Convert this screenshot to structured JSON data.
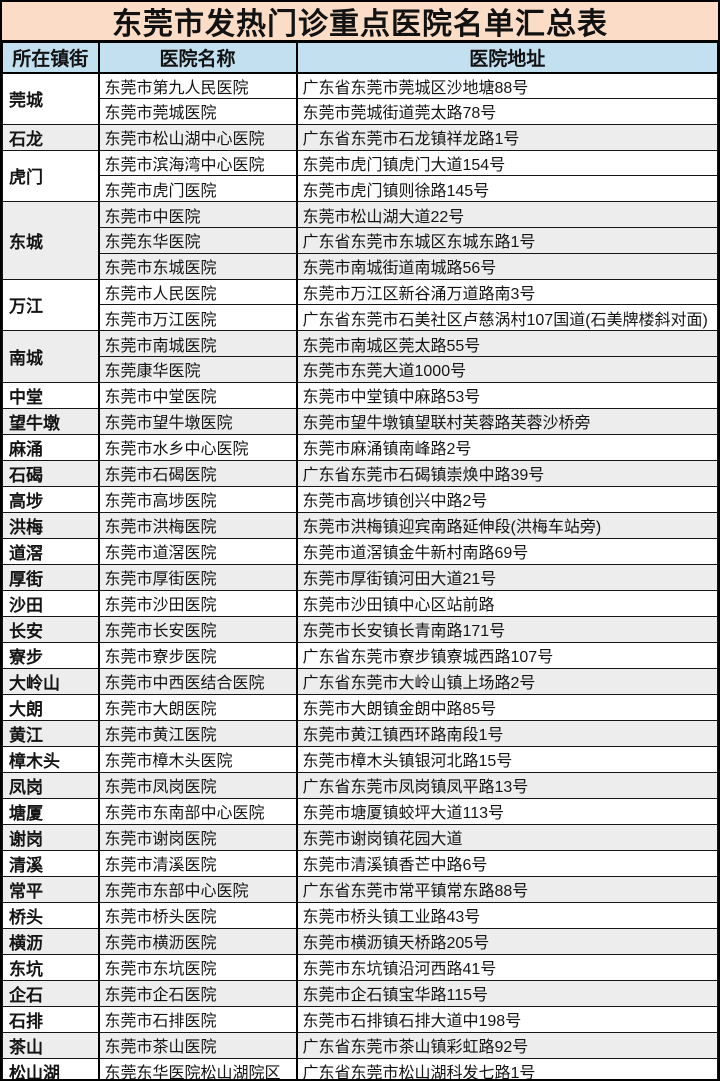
{
  "page": {
    "title": "东莞市发热门诊重点医院名单汇总表"
  },
  "colors": {
    "title_bg": "#fbdcc7",
    "header_bg": "#c3e0f1",
    "stripe_bg": "#ededed",
    "row_bg": "#ffffff",
    "border": "#000000"
  },
  "table": {
    "columns": [
      "所在镇街",
      "医院名称",
      "医院地址"
    ],
    "groups": [
      {
        "town": "莞城",
        "rows": [
          {
            "name": "东莞市第九人民医院",
            "address": "广东省东莞市莞城区沙地塘88号"
          },
          {
            "name": "东莞市莞城医院",
            "address": "东莞市莞城街道莞太路78号"
          }
        ]
      },
      {
        "town": "石龙",
        "rows": [
          {
            "name": "东莞市松山湖中心医院",
            "address": "广东省东莞市石龙镇祥龙路1号"
          }
        ]
      },
      {
        "town": "虎门",
        "rows": [
          {
            "name": "东莞市滨海湾中心医院",
            "address": "东莞市虎门镇虎门大道154号"
          },
          {
            "name": "东莞市虎门医院",
            "address": "东莞市虎门镇则徐路145号"
          }
        ]
      },
      {
        "town": "东城",
        "rows": [
          {
            "name": "东莞市中医院",
            "address": "东莞市松山湖大道22号"
          },
          {
            "name": "东莞东华医院",
            "address": "广东省东莞市东城区东城东路1号"
          },
          {
            "name": "东莞市东城医院",
            "address": "东莞市南城街道南城路56号"
          }
        ]
      },
      {
        "town": "万江",
        "rows": [
          {
            "name": "东莞市人民医院",
            "address": "东莞市万江区新谷涌万道路南3号"
          },
          {
            "name": "东莞市万江医院",
            "address": "广东省东莞市石美社区卢慈涡村107国道(石美牌楼斜对面)"
          }
        ]
      },
      {
        "town": "南城",
        "rows": [
          {
            "name": "东莞市南城医院",
            "address": "东莞市南城区莞太路55号"
          },
          {
            "name": "东莞康华医院",
            "address": "东莞市东莞大道1000号"
          }
        ]
      },
      {
        "town": "中堂",
        "rows": [
          {
            "name": "东莞市中堂医院",
            "address": "东莞市中堂镇中麻路53号"
          }
        ]
      },
      {
        "town": "望牛墩",
        "rows": [
          {
            "name": "东莞市望牛墩医院",
            "address": "东莞市望牛墩镇望联村芙蓉路芙蓉沙桥旁"
          }
        ]
      },
      {
        "town": "麻涌",
        "rows": [
          {
            "name": "东莞市水乡中心医院",
            "address": "东莞市麻涌镇南峰路2号"
          }
        ]
      },
      {
        "town": "石碣",
        "rows": [
          {
            "name": "东莞市石碣医院",
            "address": "广东省东莞市石碣镇崇焕中路39号"
          }
        ]
      },
      {
        "town": "高埗",
        "rows": [
          {
            "name": "东莞市高埗医院",
            "address": "东莞市高埗镇创兴中路2号"
          }
        ]
      },
      {
        "town": "洪梅",
        "rows": [
          {
            "name": "东莞市洪梅医院",
            "address": "东莞市洪梅镇迎宾南路延伸段(洪梅车站旁)"
          }
        ]
      },
      {
        "town": "道滘",
        "rows": [
          {
            "name": "东莞市道滘医院",
            "address": "东莞市道滘镇金牛新村南路69号"
          }
        ]
      },
      {
        "town": "厚街",
        "rows": [
          {
            "name": "东莞市厚街医院",
            "address": "东莞市厚街镇河田大道21号"
          }
        ]
      },
      {
        "town": "沙田",
        "rows": [
          {
            "name": "东莞市沙田医院",
            "address": "东莞市沙田镇中心区站前路"
          }
        ]
      },
      {
        "town": "长安",
        "rows": [
          {
            "name": "东莞市长安医院",
            "address": "东莞市长安镇长青南路171号"
          }
        ]
      },
      {
        "town": "寮步",
        "rows": [
          {
            "name": "东莞市寮步医院",
            "address": "广东省东莞市寮步镇寮城西路107号"
          }
        ]
      },
      {
        "town": "大岭山",
        "rows": [
          {
            "name": "东莞市中西医结合医院",
            "address": "广东省东莞市大岭山镇上场路2号"
          }
        ]
      },
      {
        "town": "大朗",
        "rows": [
          {
            "name": "东莞市大朗医院",
            "address": "东莞市大朗镇金朗中路85号"
          }
        ]
      },
      {
        "town": "黄江",
        "rows": [
          {
            "name": "东莞市黄江医院",
            "address": "东莞市黄江镇西环路南段1号"
          }
        ]
      },
      {
        "town": "樟木头",
        "rows": [
          {
            "name": "东莞市樟木头医院",
            "address": "东莞市樟木头镇银河北路15号"
          }
        ]
      },
      {
        "town": "凤岗",
        "rows": [
          {
            "name": "东莞市凤岗医院",
            "address": "广东省东莞市凤岗镇凤平路13号"
          }
        ]
      },
      {
        "town": "塘厦",
        "rows": [
          {
            "name": "东莞市东南部中心医院",
            "address": "东莞市塘厦镇蛟坪大道113号"
          }
        ]
      },
      {
        "town": "谢岗",
        "rows": [
          {
            "name": "东莞市谢岗医院",
            "address": "东莞市谢岗镇花园大道"
          }
        ]
      },
      {
        "town": "清溪",
        "rows": [
          {
            "name": "东莞市清溪医院",
            "address": "东莞市清溪镇香芒中路6号"
          }
        ]
      },
      {
        "town": "常平",
        "rows": [
          {
            "name": "东莞市东部中心医院",
            "address": "广东省东莞市常平镇常东路88号"
          }
        ]
      },
      {
        "town": "桥头",
        "rows": [
          {
            "name": "东莞市桥头医院",
            "address": "东莞市桥头镇工业路43号"
          }
        ]
      },
      {
        "town": "横沥",
        "rows": [
          {
            "name": "东莞市横沥医院",
            "address": "东莞市横沥镇天桥路205号"
          }
        ]
      },
      {
        "town": "东坑",
        "rows": [
          {
            "name": "东莞市东坑医院",
            "address": "东莞市东坑镇沿河西路41号"
          }
        ]
      },
      {
        "town": "企石",
        "rows": [
          {
            "name": "东莞市企石医院",
            "address": "东莞市企石镇宝华路115号"
          }
        ]
      },
      {
        "town": "石排",
        "rows": [
          {
            "name": "东莞市石排医院",
            "address": "东莞市石排镇石排大道中198号"
          }
        ]
      },
      {
        "town": "茶山",
        "rows": [
          {
            "name": "东莞市茶山医院",
            "address": "广东省东莞市茶山镇彩虹路92号"
          }
        ]
      },
      {
        "town": "松山湖",
        "rows": [
          {
            "name": "东莞东华医院松山湖院区",
            "address": "广东省东莞市松山湖科发七路1号"
          }
        ]
      }
    ]
  }
}
